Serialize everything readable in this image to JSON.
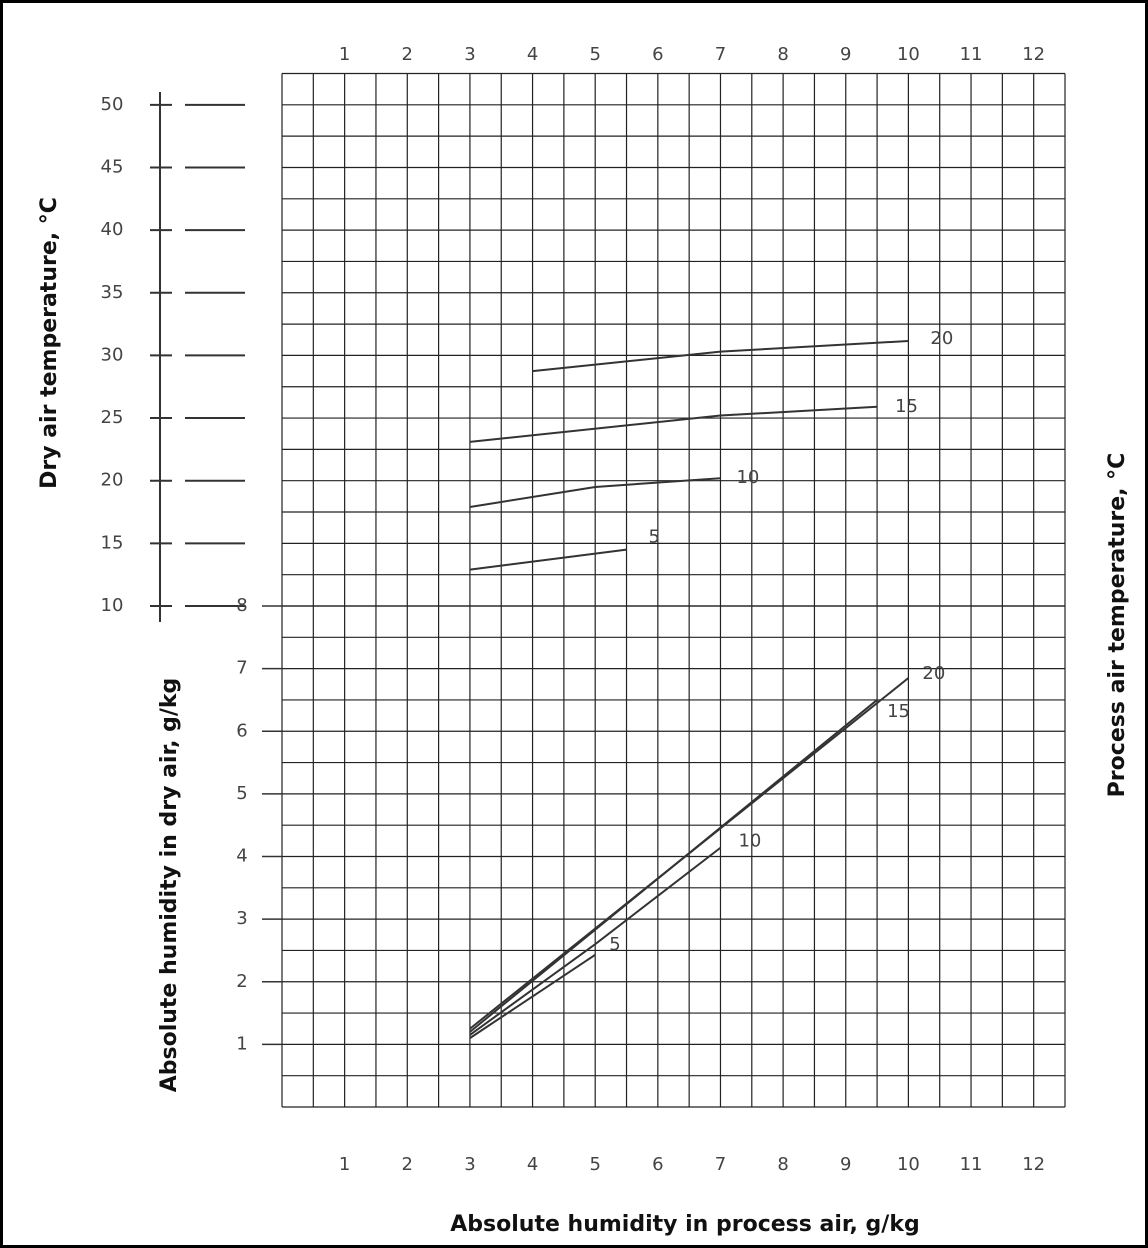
{
  "chart_data": [
    {
      "type": "line",
      "ylabel": "Dry air temperature, °C",
      "series_label": "Process air temperature, °C",
      "xlim": [
        0,
        12.5
      ],
      "xticks": [
        1,
        2,
        3,
        4,
        5,
        6,
        7,
        8,
        9,
        10,
        11,
        12
      ],
      "ylim": [
        10,
        52.5
      ],
      "yticks": [
        10,
        15,
        20,
        25,
        30,
        35,
        40,
        45,
        50
      ],
      "grid": true,
      "grid_step": 2.5,
      "series": [
        {
          "name": "5",
          "color": "#333333",
          "x": [
            3,
            5.5
          ],
          "values": [
            12.9,
            14.5
          ]
        },
        {
          "name": "10",
          "color": "#333333",
          "x": [
            3,
            5,
            7
          ],
          "values": [
            17.9,
            19.5,
            20.2
          ]
        },
        {
          "name": "15",
          "color": "#333333",
          "x": [
            3,
            7,
            9.5
          ],
          "values": [
            23.1,
            25.2,
            25.9
          ]
        },
        {
          "name": "20",
          "color": "#333333",
          "x": [
            4,
            7,
            10
          ],
          "values": [
            28.75,
            30.3,
            31.15
          ]
        }
      ]
    },
    {
      "type": "line",
      "ylabel": "Absolute humidity in dry air, g/kg",
      "xlabel": "Absolute humidity in process air, g/kg",
      "xlim": [
        0,
        12.5
      ],
      "xticks": [
        1,
        2,
        3,
        4,
        5,
        6,
        7,
        8,
        9,
        10,
        11,
        12
      ],
      "ylim": [
        0,
        8
      ],
      "yticks": [
        1,
        2,
        3,
        4,
        5,
        6,
        7,
        8
      ],
      "grid": true,
      "grid_step": 0.5,
      "series": [
        {
          "name": "5",
          "color": "#333333",
          "x": [
            3,
            5
          ],
          "values": [
            1.1,
            2.43
          ]
        },
        {
          "name": "10",
          "color": "#333333",
          "x": [
            3,
            5,
            7
          ],
          "values": [
            1.15,
            2.6,
            4.14
          ]
        },
        {
          "name": "15",
          "color": "#333333",
          "x": [
            3,
            9.5
          ],
          "values": [
            1.2,
            6.5
          ]
        },
        {
          "name": "20",
          "color": "#333333",
          "x": [
            3,
            10
          ],
          "values": [
            1.25,
            6.85
          ]
        }
      ]
    }
  ]
}
